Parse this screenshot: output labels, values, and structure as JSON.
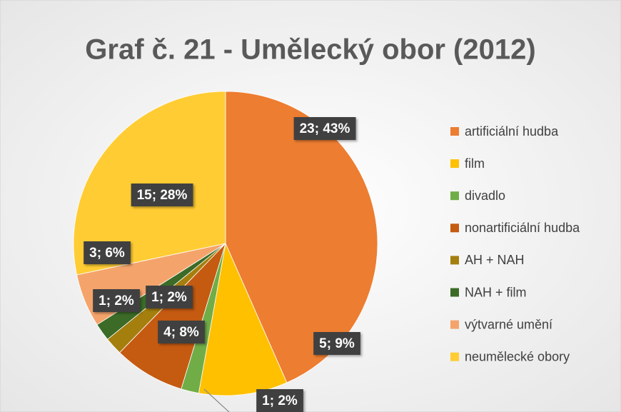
{
  "chart_data": {
    "type": "pie",
    "title": "Graf č. 21 - Umělecký obor (2012)",
    "categories": [
      "artificiální hudba",
      "film",
      "divadlo",
      "nonartificiální hudba",
      "AH + NAH",
      "NAH + film",
      "výtvarné umění",
      "neumělecké obory"
    ],
    "values": [
      23,
      5,
      1,
      4,
      1,
      1,
      3,
      15
    ],
    "value_labels": [
      "23; 43%",
      "5; 9%",
      "1; 2%",
      "4; 8%",
      "1; 2%",
      "1; 2%",
      "3; 6%",
      "15; 28%"
    ],
    "colors": [
      "#ED7D31",
      "#FFC000",
      "#70AD47",
      "#C55A11",
      "#A47F0E",
      "#3B6B27",
      "#F4A46B",
      "#FFCC33"
    ],
    "legend": "right"
  }
}
